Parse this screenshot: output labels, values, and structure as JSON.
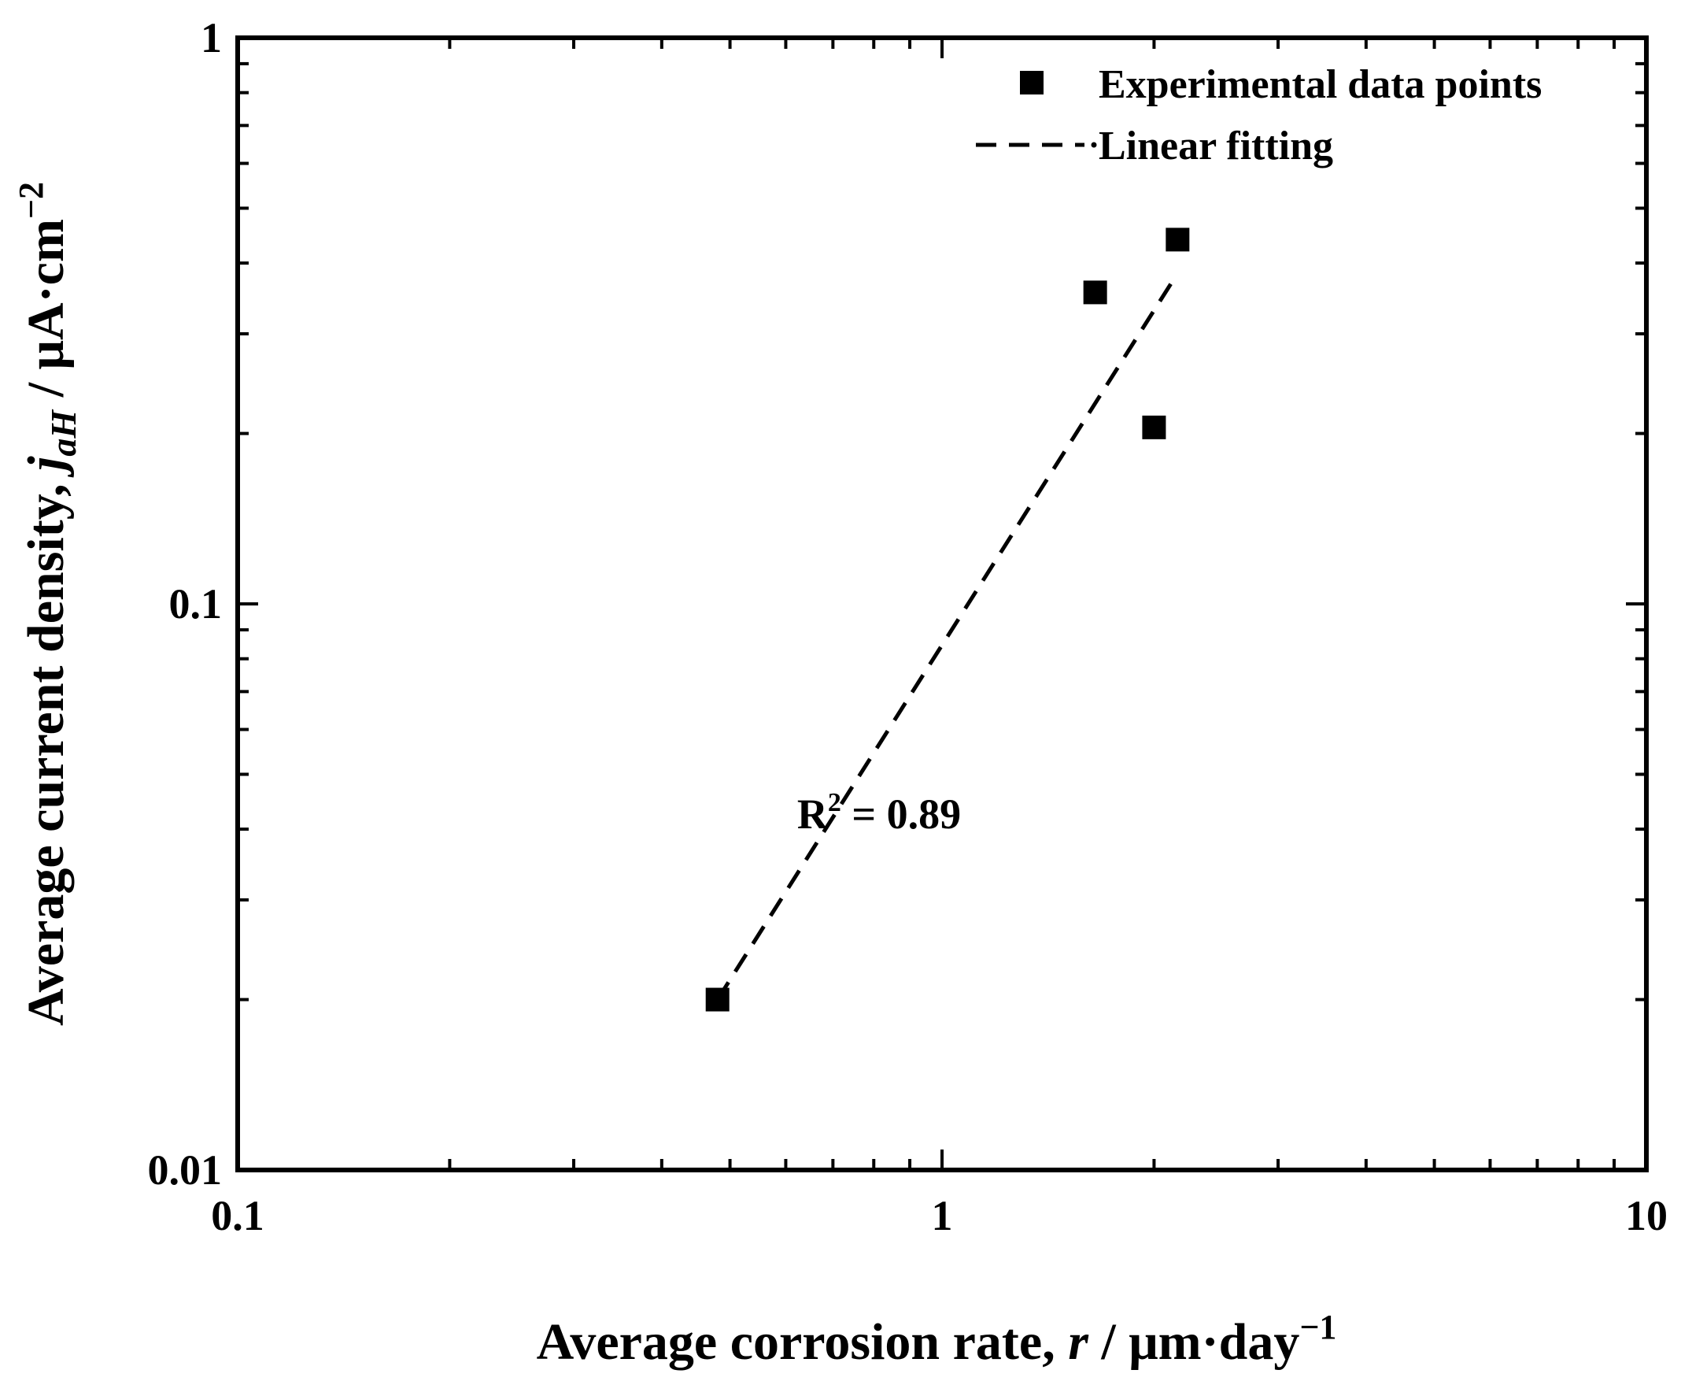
{
  "chart_data": {
    "type": "scatter",
    "x_scale": "log",
    "y_scale": "log",
    "xlim": [
      0.1,
      10
    ],
    "ylim": [
      0.01,
      1
    ],
    "x_ticks": [
      "0.1",
      "1",
      "10"
    ],
    "y_ticks": [
      "0.01",
      "0.1",
      "1"
    ],
    "xlabel": {
      "prefix": "Average corrosion rate, ",
      "var": "r",
      "unit": " / μm·day",
      "exp": "−1"
    },
    "ylabel": {
      "prefix": "Average current density, ",
      "var": "j",
      "var_sub": "aH",
      "unit": " / μA·cm",
      "exp": "−2"
    },
    "series": [
      {
        "name": "Experimental data points",
        "marker": "square",
        "x": [
          0.48,
          1.65,
          2.0,
          2.16
        ],
        "y": [
          0.02,
          0.355,
          0.205,
          0.44
        ]
      },
      {
        "name": "Linear fitting",
        "style": "dashed",
        "x": [
          0.48,
          2.12
        ],
        "y": [
          0.02,
          0.37
        ]
      }
    ],
    "annotation": {
      "text_main": "R",
      "text_sup": "2",
      "text_rest": " = 0.89",
      "x": 0.87,
      "y": 0.0425
    },
    "legend_position": "top-right",
    "colors": {
      "marker": "#000000",
      "line": "#000000",
      "axis": "#000000"
    }
  }
}
